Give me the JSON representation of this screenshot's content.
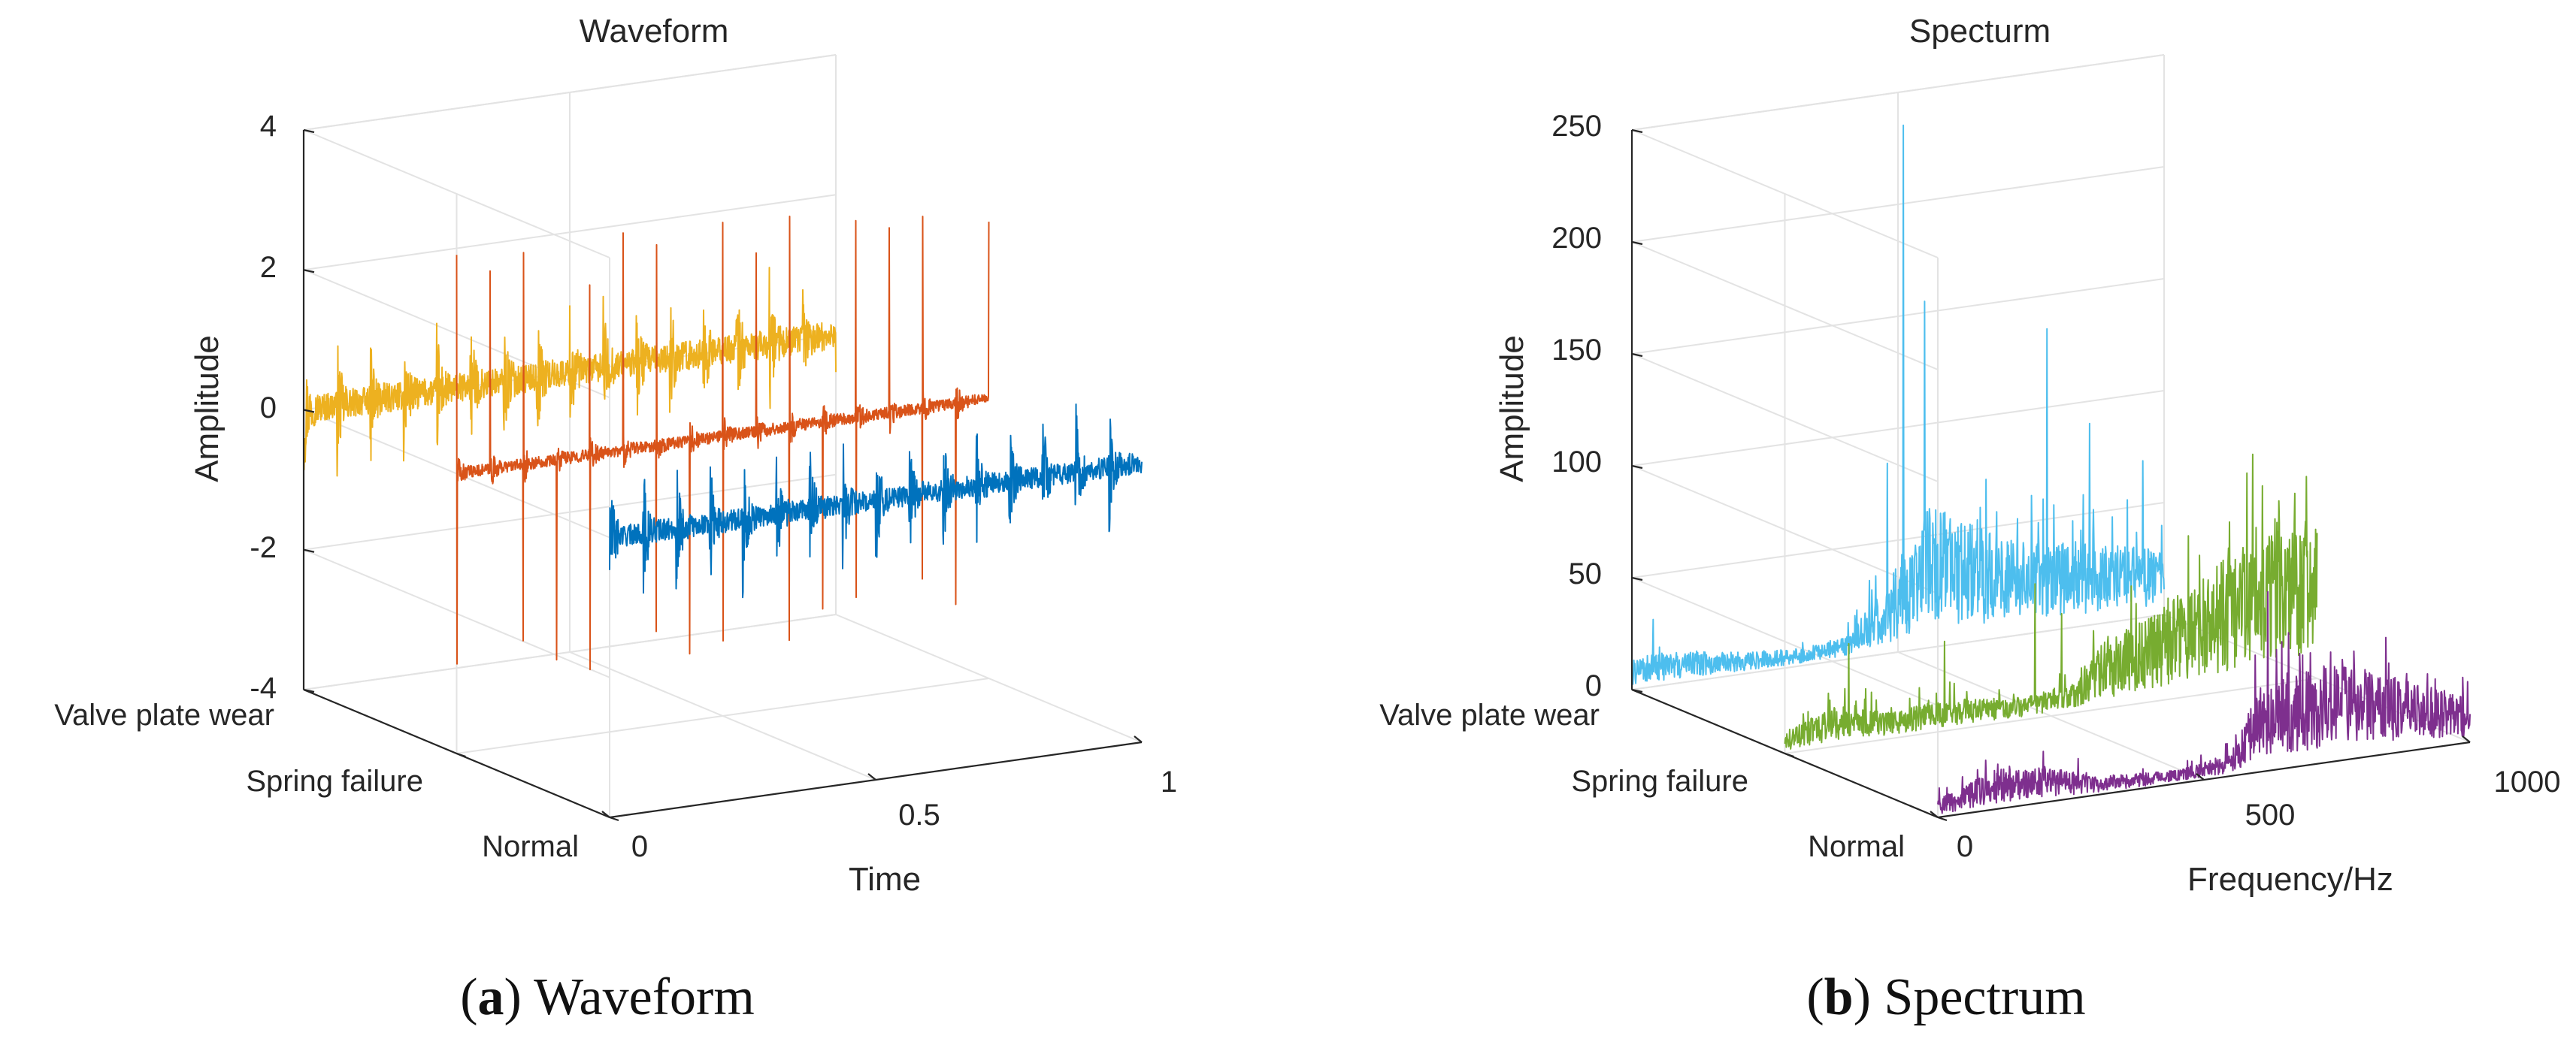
{
  "colors": {
    "waveform_normal": "#0072BD",
    "waveform_spring_failure": "#D95319",
    "waveform_valve_plate_wear": "#EDB120",
    "spectrum_normal": "#7E2F8E",
    "spectrum_spring_failure": "#77AC30",
    "spectrum_valve_plate_wear": "#4DBEEE"
  },
  "captions": {
    "a_letter": "a",
    "a_text": "Waveform",
    "b_letter": "b",
    "b_text": "Spectrum"
  },
  "chart_data": [
    {
      "type": "line",
      "view": "3d",
      "title": "Waveform",
      "xlabel": "Time",
      "ylabel": "",
      "zlabel": "Amplitude",
      "xlim": [
        0,
        1
      ],
      "zlim": [
        -4,
        4
      ],
      "x_ticks": [
        "0",
        "0.5",
        "1"
      ],
      "z_ticks": [
        "-4",
        "-2",
        "0",
        "2",
        "4"
      ],
      "y_categories": [
        "Valve plate wear",
        "Spring failure",
        "Normal"
      ],
      "grid": true,
      "series": [
        {
          "category": "Normal",
          "x_range": [
            0,
            1
          ],
          "baseline": 0,
          "burst_interval": 0.0625,
          "burst_amplitude": 1.0,
          "noise_amplitude": 0.15,
          "impulse_amplitude": 0,
          "color_key": "waveform_normal"
        },
        {
          "category": "Spring failure",
          "x_range": [
            0,
            1
          ],
          "baseline": 0,
          "burst_interval": 0.0625,
          "burst_amplitude": 0.3,
          "noise_amplitude": 0.08,
          "impulse_amplitude": 2.8,
          "color_key": "waveform_spring_failure"
        },
        {
          "category": "Valve plate wear",
          "x_range": [
            0,
            1
          ],
          "baseline": 0,
          "burst_interval": 0.0625,
          "burst_amplitude": 0.9,
          "noise_amplitude": 0.2,
          "impulse_amplitude": 0,
          "color_key": "waveform_valve_plate_wear"
        }
      ]
    },
    {
      "type": "line",
      "view": "3d",
      "title": "Specturm",
      "xlabel": "Frequency/Hz",
      "ylabel": "",
      "zlabel": "Amplitude",
      "xlim": [
        0,
        1000
      ],
      "zlim": [
        0,
        250
      ],
      "x_ticks": [
        "0",
        "500",
        "1000"
      ],
      "z_ticks": [
        "0",
        "50",
        "100",
        "150",
        "200",
        "250"
      ],
      "y_categories": [
        "Valve plate wear",
        "Spring failure",
        "Normal"
      ],
      "grid": true,
      "series": [
        {
          "category": "Normal",
          "color_key": "spectrum_normal",
          "envelope": [
            [
              0,
              8
            ],
            [
              100,
              18
            ],
            [
              200,
              16
            ],
            [
              300,
              8
            ],
            [
              450,
              6
            ],
            [
              550,
              10
            ],
            [
              600,
              35
            ],
            [
              700,
              45
            ],
            [
              800,
              40
            ],
            [
              900,
              30
            ],
            [
              1000,
              20
            ]
          ],
          "peaks": [
            [
              620,
              80
            ],
            [
              700,
              50
            ],
            [
              760,
              45
            ]
          ]
        },
        {
          "category": "Spring failure",
          "color_key": "spectrum_spring_failure",
          "envelope": [
            [
              0,
              10
            ],
            [
              100,
              18
            ],
            [
              200,
              12
            ],
            [
              300,
              14
            ],
            [
              450,
              10
            ],
            [
              550,
              14
            ],
            [
              600,
              30
            ],
            [
              700,
              40
            ],
            [
              800,
              55
            ],
            [
              900,
              75
            ],
            [
              1000,
              70
            ]
          ],
          "peaks": [
            [
              120,
              45
            ],
            [
              300,
              40
            ],
            [
              470,
              60
            ],
            [
              520,
              45
            ]
          ]
        },
        {
          "category": "Valve plate wear",
          "color_key": "spectrum_valve_plate_wear",
          "envelope": [
            [
              0,
              15
            ],
            [
              100,
              14
            ],
            [
              200,
              10
            ],
            [
              300,
              8
            ],
            [
              400,
              10
            ],
            [
              480,
              30
            ],
            [
              550,
              65
            ],
            [
              620,
              55
            ],
            [
              700,
              45
            ],
            [
              800,
              40
            ],
            [
              900,
              35
            ],
            [
              1000,
              30
            ]
          ],
          "peaks": [
            [
              40,
              30
            ],
            [
              480,
              85
            ],
            [
              510,
              235
            ],
            [
              550,
              155
            ],
            [
              780,
              135
            ],
            [
              860,
              90
            ],
            [
              960,
              70
            ]
          ]
        }
      ]
    }
  ]
}
